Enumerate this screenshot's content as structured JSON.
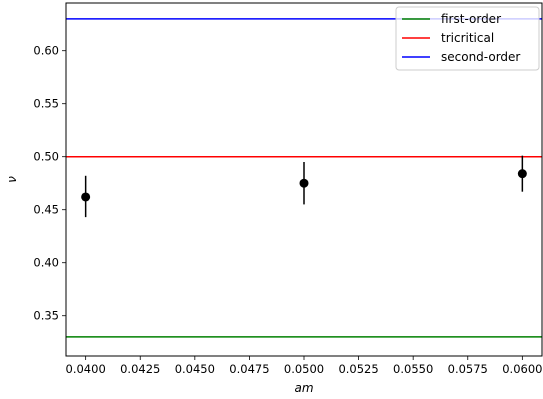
{
  "chart_data": {
    "type": "scatter",
    "xlabel": "am",
    "ylabel": "ν",
    "xlim": [
      0.0391,
      0.0609
    ],
    "ylim": [
      0.312,
      0.645
    ],
    "xticks": [
      0.04,
      0.0425,
      0.045,
      0.0475,
      0.05,
      0.0525,
      0.055,
      0.0575,
      0.06
    ],
    "xtick_labels": [
      "0.0400",
      "0.0425",
      "0.0450",
      "0.0475",
      "0.0500",
      "0.0525",
      "0.0550",
      "0.0575",
      "0.0600"
    ],
    "yticks": [
      0.35,
      0.4,
      0.45,
      0.5,
      0.55,
      0.6
    ],
    "ytick_labels": [
      "0.35",
      "0.40",
      "0.45",
      "0.50",
      "0.55",
      "0.60"
    ],
    "grid": false,
    "legend_position": "top-right",
    "points": [
      {
        "x": 0.04,
        "y": 0.462,
        "err_low": 0.443,
        "err_high": 0.482
      },
      {
        "x": 0.05,
        "y": 0.475,
        "err_low": 0.455,
        "err_high": 0.495
      },
      {
        "x": 0.06,
        "y": 0.484,
        "err_low": 0.467,
        "err_high": 0.501
      }
    ],
    "point_color": "#000000",
    "reference_lines": [
      {
        "name": "first-order",
        "y": 0.33,
        "color": "#008000"
      },
      {
        "name": "tricritical",
        "y": 0.5,
        "color": "#ff0000"
      },
      {
        "name": "second-order",
        "y": 0.63,
        "color": "#0000ff"
      }
    ]
  }
}
